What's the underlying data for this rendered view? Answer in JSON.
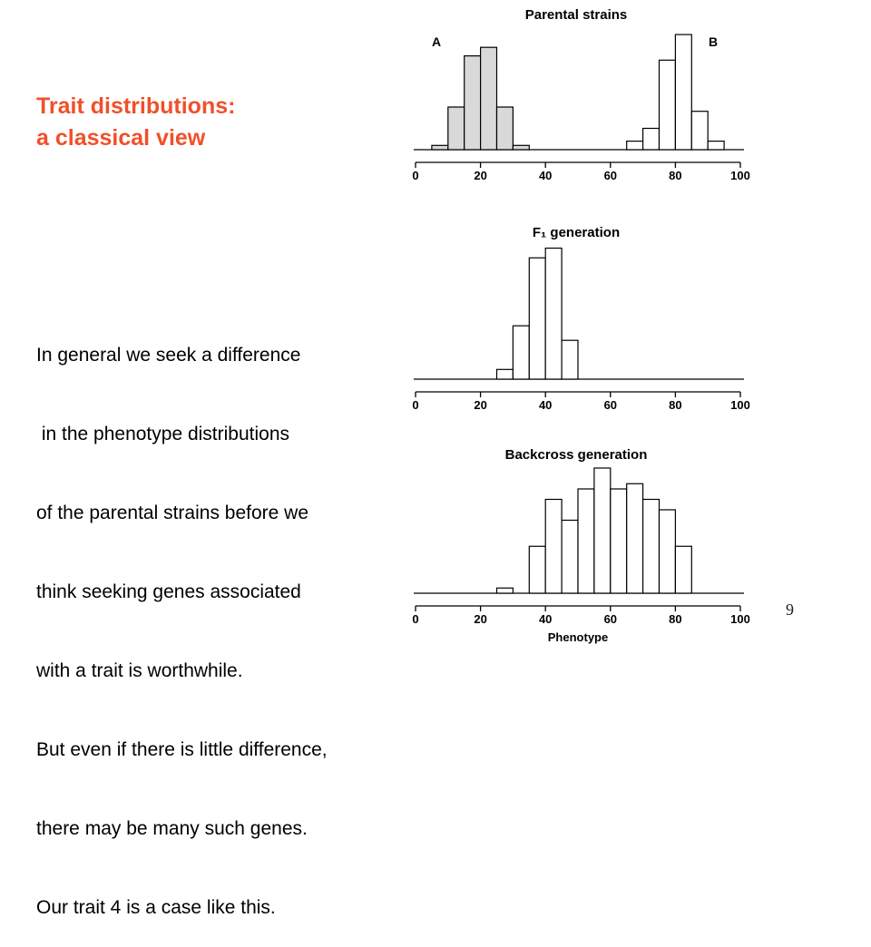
{
  "slide": {
    "title_lines": [
      "Trait distributions:",
      "a classical view"
    ],
    "body_lines": [
      "In general we seek a difference",
      " in the phenotype distributions",
      "of the parental strains before we",
      "think seeking genes associated",
      "with a trait is worthwhile.",
      "But even if there is little difference,",
      "there may be many such genes.",
      "Our trait 4 is a case like this."
    ],
    "page_number": "9",
    "colors": {
      "title": "#f0502a",
      "parent_a_fill": "#d9d9d9",
      "bar_fill_other": "#ffffff",
      "stroke": "#000000"
    }
  },
  "chart_data": [
    {
      "type": "bar",
      "title": "Parental strains",
      "xlabel": "",
      "xlim": [
        0,
        100
      ],
      "xticks": [
        "0",
        "20",
        "40",
        "60",
        "80",
        "100"
      ],
      "bin_width": 5,
      "series": [
        {
          "name": "A",
          "bins_start": [
            5,
            10,
            15,
            20,
            25,
            30
          ],
          "values": [
            1,
            10,
            22,
            24,
            10,
            1
          ]
        },
        {
          "name": "B",
          "bins_start": [
            65,
            70,
            75,
            80,
            85,
            90
          ],
          "values": [
            2,
            5,
            21,
            27,
            9,
            2
          ]
        }
      ]
    },
    {
      "type": "bar",
      "title": "F₁ generation",
      "xlabel": "",
      "xlim": [
        0,
        100
      ],
      "xticks": [
        "0",
        "20",
        "40",
        "60",
        "80",
        "100"
      ],
      "bin_width": 5,
      "series": [
        {
          "bins_start": [
            25,
            30,
            35,
            40,
            45
          ],
          "values": [
            2,
            11,
            25,
            27,
            8
          ]
        }
      ]
    },
    {
      "type": "bar",
      "title": "Backcross generation",
      "xlabel": "Phenotype",
      "xlim": [
        0,
        100
      ],
      "xticks": [
        "0",
        "20",
        "40",
        "60",
        "80",
        "100"
      ],
      "bin_width": 5,
      "series": [
        {
          "bins_start": [
            25,
            35,
            40,
            45,
            50,
            55,
            60,
            65,
            70,
            75,
            80
          ],
          "values": [
            1,
            9,
            18,
            14,
            20,
            24,
            20,
            21,
            18,
            16,
            9
          ]
        }
      ]
    }
  ]
}
